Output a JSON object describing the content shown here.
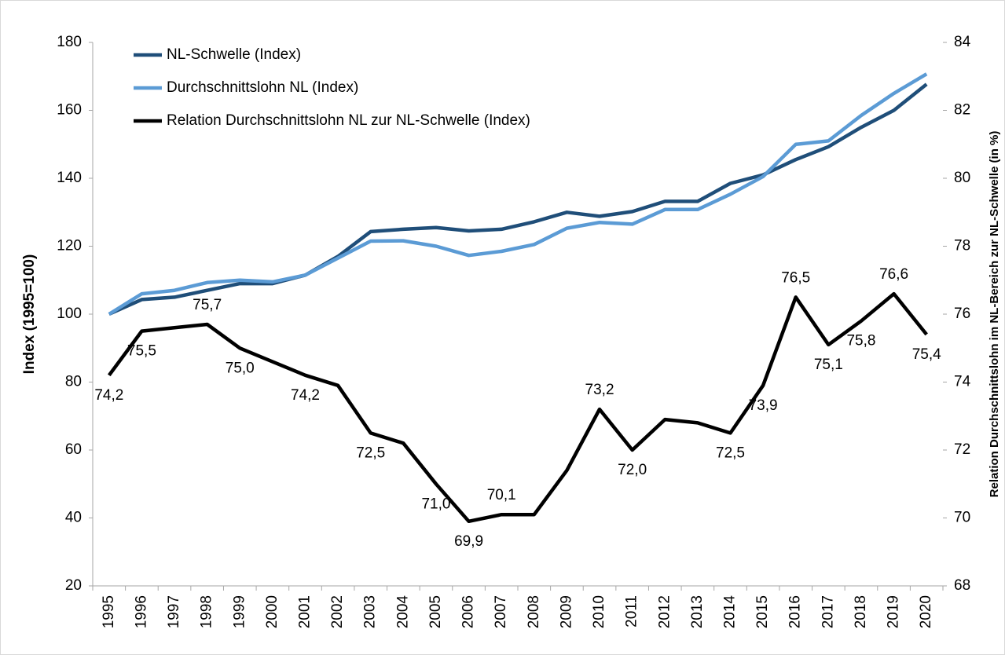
{
  "chart_data": {
    "type": "line",
    "categories": [
      "1995",
      "1996",
      "1997",
      "1998",
      "1999",
      "2000",
      "2001",
      "2002",
      "2003",
      "2004",
      "2005",
      "2006",
      "2007",
      "2008",
      "2009",
      "2010",
      "2011",
      "2012",
      "2013",
      "2014",
      "2015",
      "2016",
      "2017",
      "2018",
      "2019",
      "2020"
    ],
    "y_label": "Index (1995=100)",
    "y2_label": "Relation Durchschnittslohn im NL-Bereich  zur NL-Schwelle (in %)",
    "ylim": [
      20,
      180
    ],
    "yticks": [
      20,
      40,
      60,
      80,
      100,
      120,
      140,
      160,
      180
    ],
    "y2lim": [
      68,
      84
    ],
    "y2ticks": [
      68,
      70,
      72,
      74,
      76,
      78,
      80,
      82,
      84
    ],
    "legend": "top-left",
    "series": [
      {
        "name": "NL-Schwelle (Index)",
        "color": "#1f4e79",
        "values": [
          100,
          104.3,
          105,
          107,
          109,
          109,
          111.5,
          117,
          124.3,
          125,
          125.5,
          124.5,
          125,
          127.2,
          130,
          128.8,
          130.2,
          133.2,
          133.2,
          138.5,
          141,
          145.5,
          149.3,
          155,
          160,
          167.7
        ]
      },
      {
        "name": "Durchschnittslohn NL (Index)",
        "color": "#5b9bd5",
        "values": [
          100,
          106,
          107,
          109.3,
          110,
          109.5,
          111.5,
          116.5,
          121.5,
          121.6,
          120,
          117.3,
          118.5,
          120.5,
          125.3,
          127,
          126.5,
          130.8,
          130.8,
          135.3,
          140.5,
          150,
          151,
          158.5,
          165,
          170.7
        ]
      },
      {
        "name": "Relation Durchschnittslohn NL zur NL-Schwelle (Index)",
        "color": "#000000",
        "axis": "y2",
        "values": [
          74.2,
          75.5,
          75.6,
          75.7,
          75.0,
          74.6,
          74.2,
          73.9,
          72.5,
          72.2,
          71.0,
          69.9,
          70.1,
          70.1,
          71.4,
          73.2,
          72.0,
          72.9,
          72.8,
          72.5,
          73.9,
          76.5,
          75.1,
          75.8,
          76.6,
          75.4
        ],
        "value_labels": [
          "74,2",
          "75,5",
          null,
          "75,7",
          "75,0",
          null,
          "74,2",
          null,
          "72,5",
          null,
          "71,0",
          "69,9",
          "70,1",
          null,
          null,
          "73,2",
          "72,0",
          null,
          null,
          "72,5",
          "73,9",
          "76,5",
          "75,1",
          "75,8",
          "76,6",
          "75,4"
        ]
      }
    ]
  }
}
